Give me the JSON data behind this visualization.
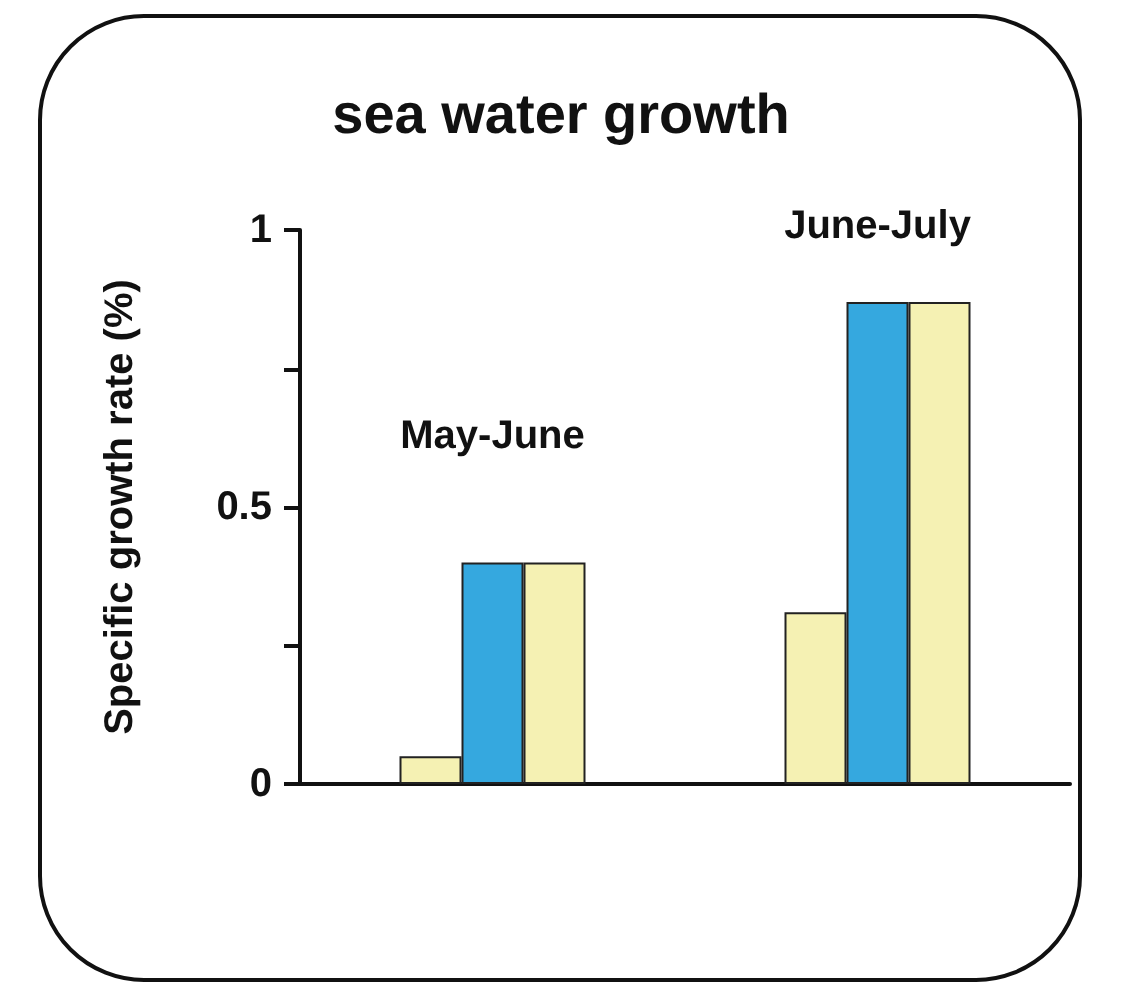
{
  "chart_data": {
    "type": "bar",
    "title": "sea water growth",
    "ylabel": "Specific growth rate (%)",
    "categories": [
      null,
      null
    ],
    "series": [
      {
        "color": "#f5f1b3",
        "values": [
          0.05,
          0.31
        ]
      },
      {
        "color": "#35a8df",
        "values": [
          0.4,
          0.87
        ]
      },
      {
        "color": "#f5f1b3",
        "values": [
          0.4,
          0.87
        ]
      }
    ],
    "ylim": [
      0,
      1
    ],
    "yticks": [
      0,
      {
        "value": 0.25,
        "label": null
      },
      0.5,
      {
        "value": 0.75,
        "label": null
      },
      1
    ],
    "annotations": [
      "May-June",
      "June-July"
    ]
  }
}
